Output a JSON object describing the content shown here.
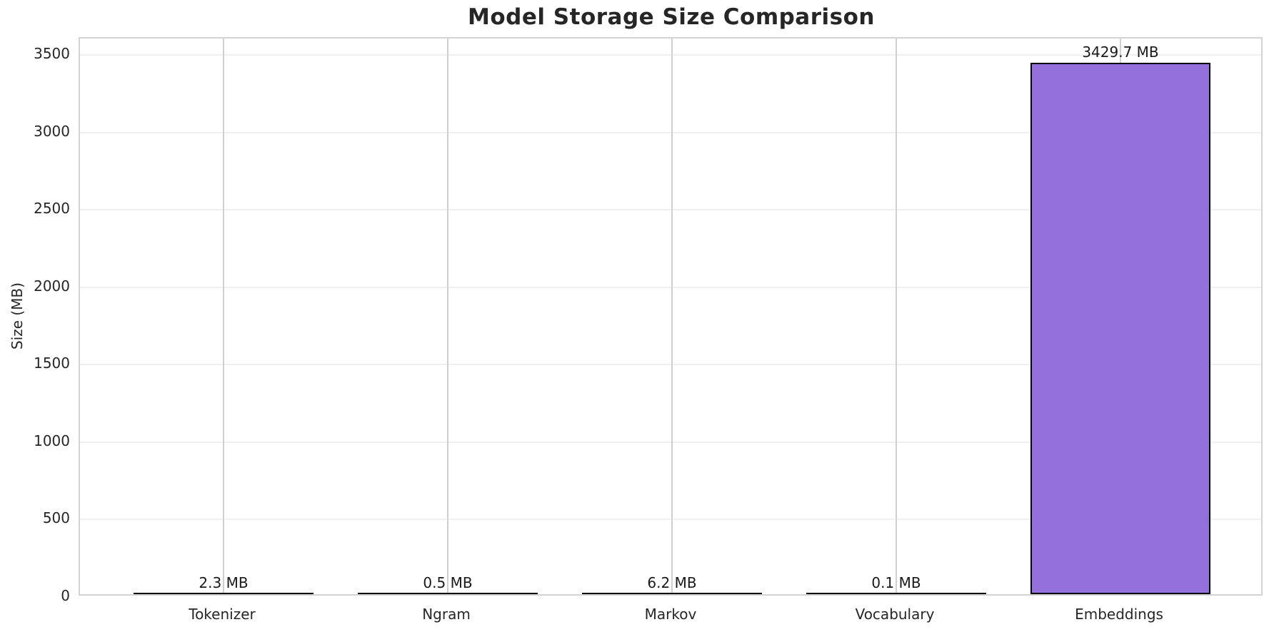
{
  "title": "Model Storage Size Comparison",
  "colors": {
    "background": "#ffffff",
    "text": "#262626",
    "axis_border": "#d3d3d3",
    "grid_horizontal": "#f0f0f0",
    "grid_vertical": "#d0d0d0"
  },
  "chart_data": {
    "type": "bar",
    "title": "Model Storage Size Comparison",
    "xlabel": "",
    "ylabel": "Size (MB)",
    "categories": [
      "Tokenizer",
      "Ngram",
      "Markov",
      "Vocabulary",
      "Embeddings"
    ],
    "values": [
      2.3,
      0.5,
      6.2,
      0.1,
      3429.7
    ],
    "bar_labels": [
      "2.3 MB",
      "0.5 MB",
      "6.2 MB",
      "0.1 MB",
      "3429.7 MB"
    ],
    "value_unit": "MB",
    "yticks": [
      0,
      500,
      1000,
      1500,
      2000,
      2500,
      3000,
      3500
    ],
    "ylim": [
      0,
      3644
    ],
    "grid": true,
    "legend": false,
    "bar_color": "#9370DB",
    "bar_edge_color": "#000000"
  }
}
